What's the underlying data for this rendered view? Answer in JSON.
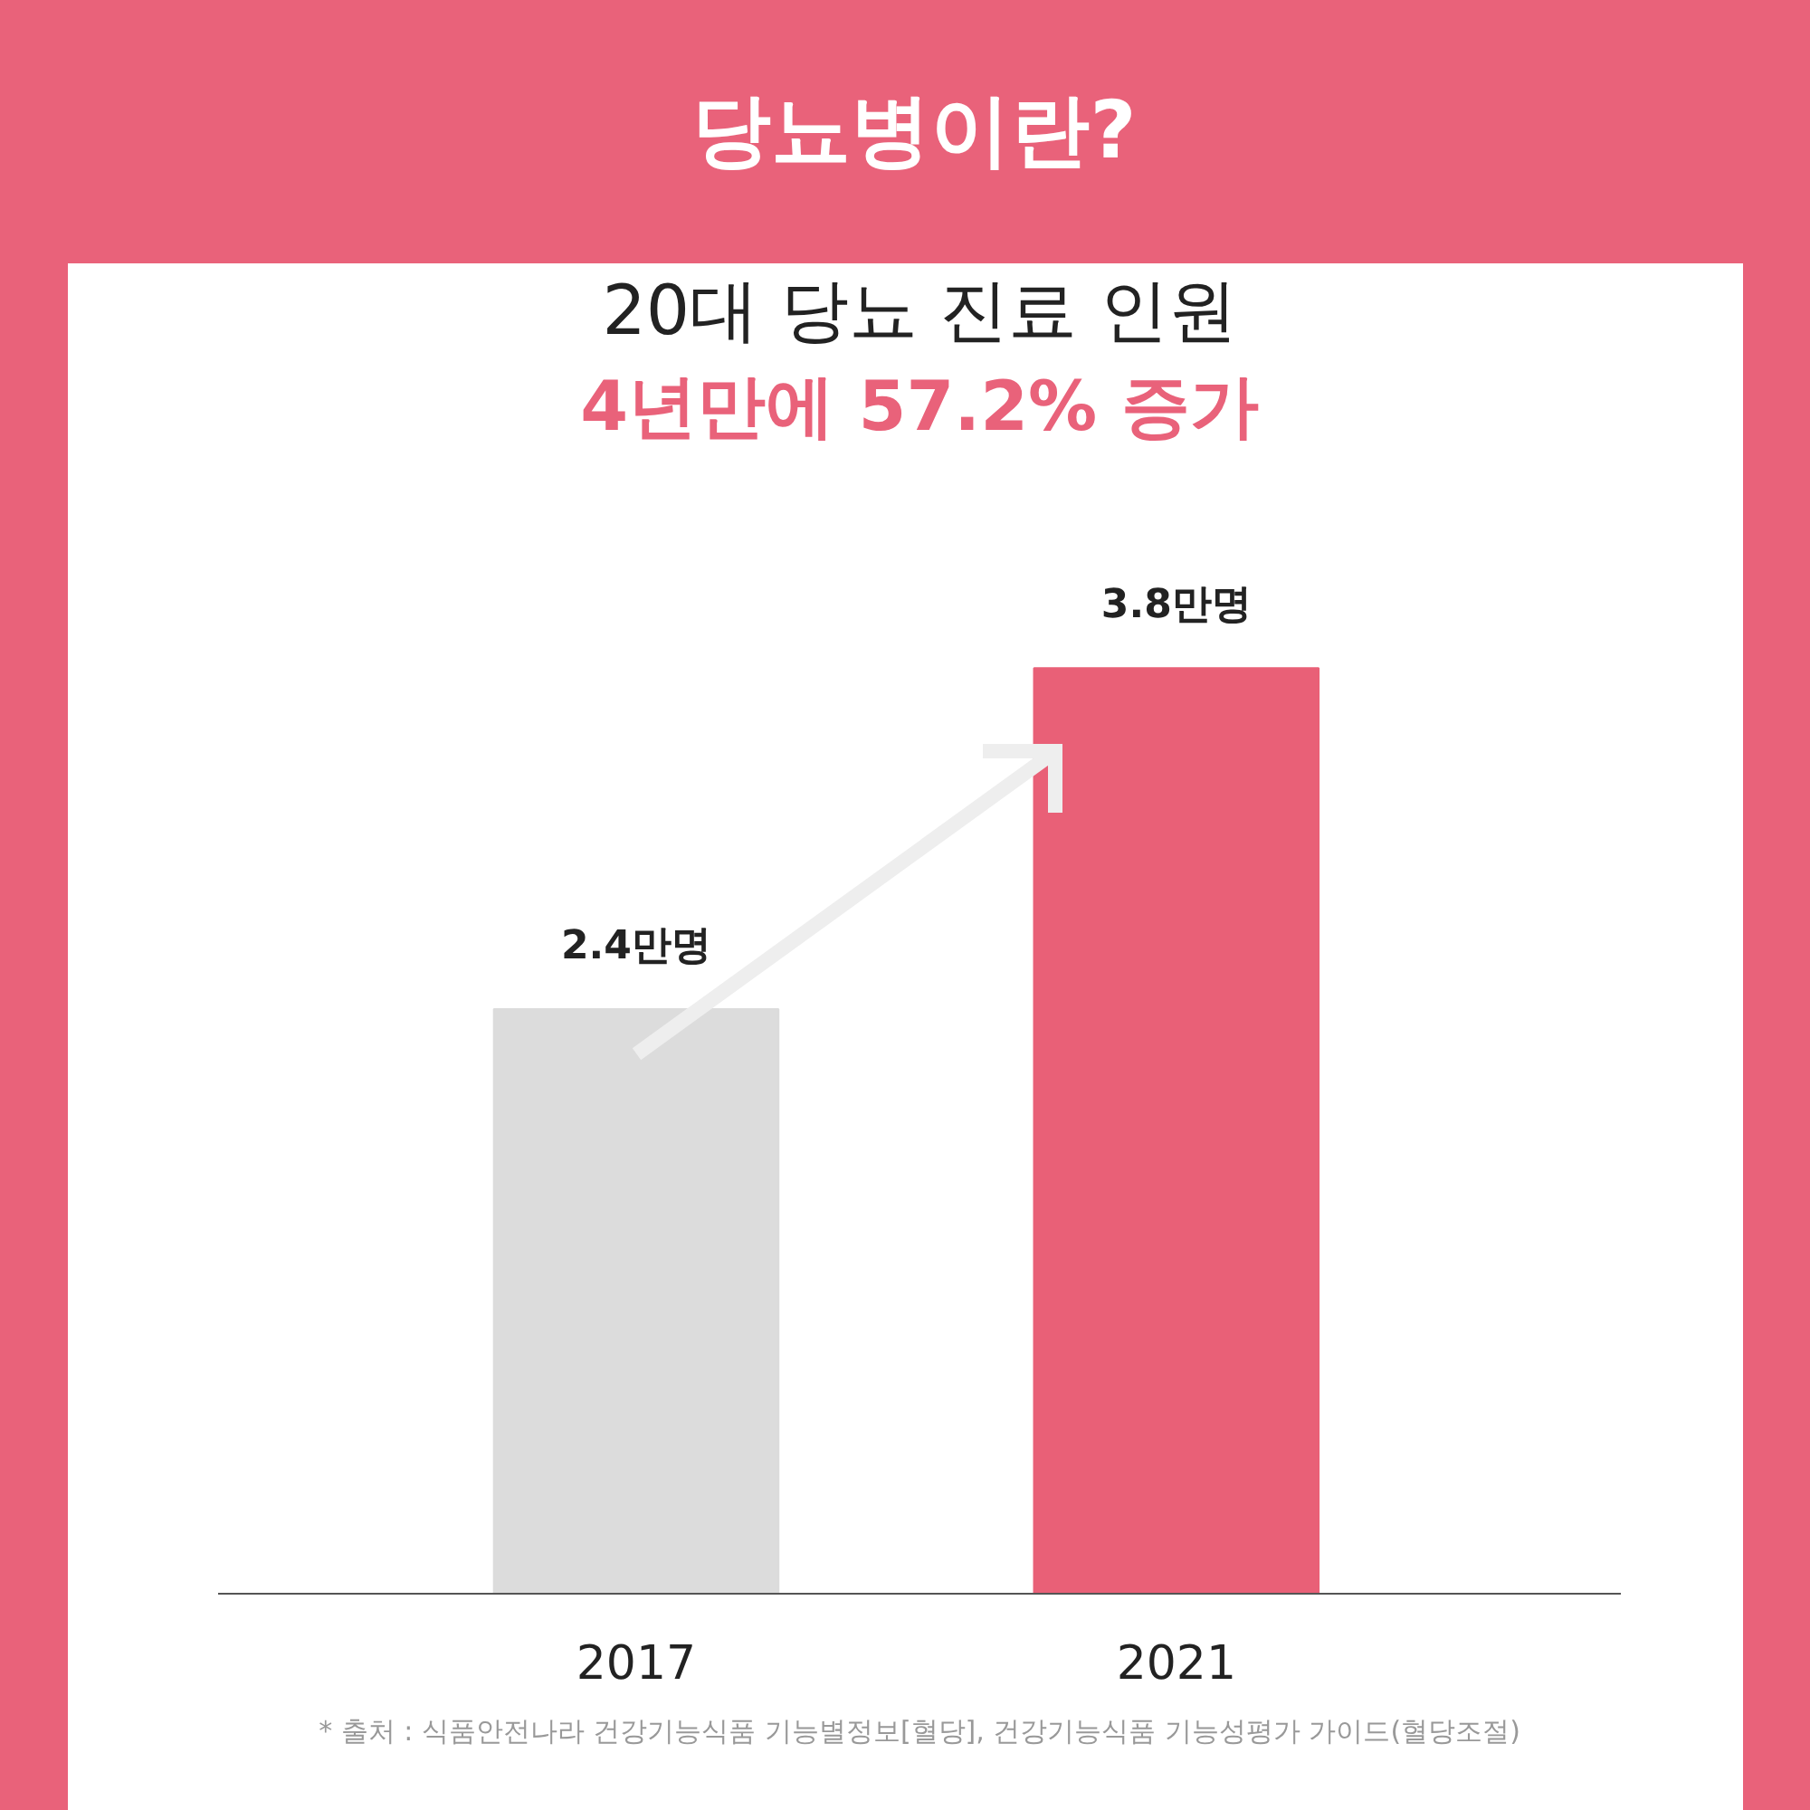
{
  "chart_data": {
    "type": "bar",
    "title": "당뇨병이란?",
    "subtitle": "20대 당뇨 진료 인원",
    "categories": [
      "2017",
      "2021"
    ],
    "values": [
      2.4,
      3.8
    ],
    "colors": [
      "#dcdcdc",
      "#e96077"
    ],
    "value_labels": [
      "2.4만명",
      "3.8만명"
    ],
    "annotations": [
      "4년만에 57.2% 증가",
      "* 출처 : 식품안전나라 건강기능식품 기능별정보[혈당], 건강기능식품 기능성평가 가이드(혈당조절)"
    ],
    "grid": false
  }
}
